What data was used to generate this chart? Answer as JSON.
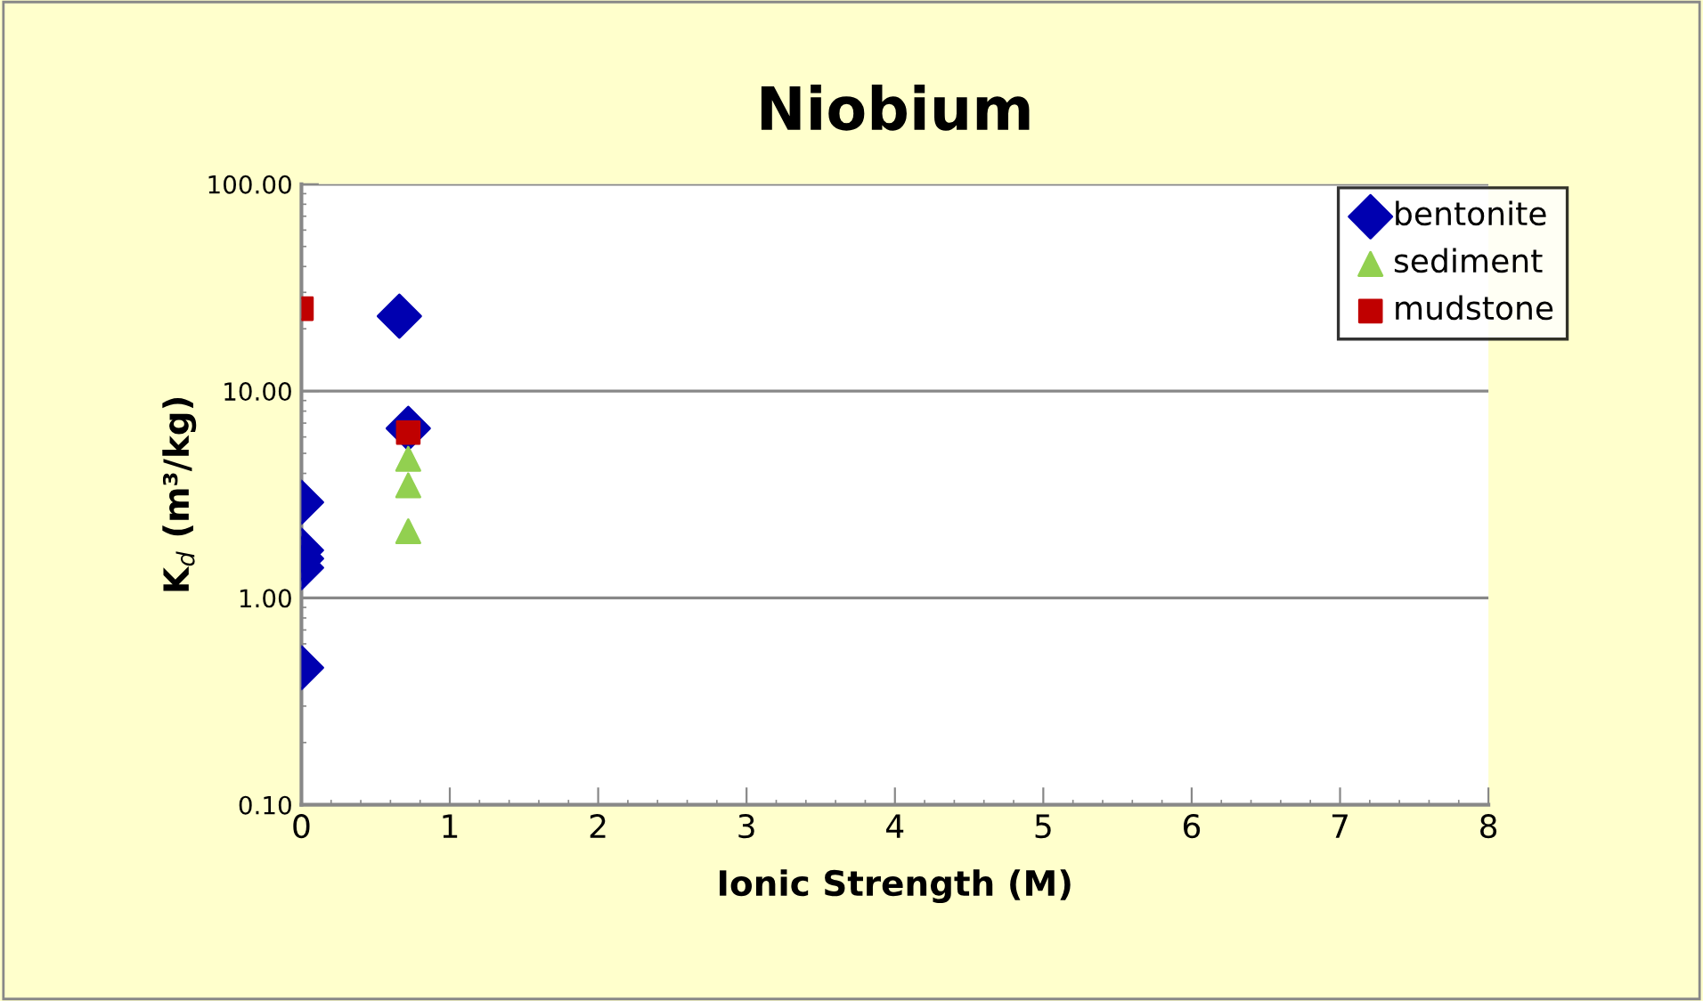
{
  "chart_data": {
    "type": "scatter",
    "title": "Niobium",
    "xlabel": "Ionic Strength (M)",
    "ylabel": "K$_{d}$ (m³/kg)",
    "log": "y",
    "xlim": [
      0,
      8
    ],
    "xticks": [
      0,
      1,
      2,
      3,
      4,
      5,
      6,
      7,
      8
    ],
    "ylim": [
      0.1,
      100
    ],
    "yticks": [
      {
        "value": 0.1,
        "label": "0.10"
      },
      {
        "value": 1,
        "label": "1.00"
      },
      {
        "value": 10,
        "label": "10.00"
      },
      {
        "value": 100,
        "label": "100.00"
      }
    ],
    "grid": "y",
    "legend": "top right",
    "series": [
      {
        "name": "bentonite",
        "color": "#0000b0",
        "marker": "diamond",
        "x": [
          0,
          0,
          0,
          0,
          0,
          0.66,
          0.72
        ],
        "values": [
          2.9,
          1.7,
          1.55,
          1.4,
          0.46,
          23,
          6.6
        ]
      },
      {
        "name": "sediment",
        "color": "#92d050",
        "marker": "triangle",
        "x": [
          0.72,
          0.72,
          0.72
        ],
        "values": [
          4.7,
          3.5,
          2.1
        ]
      },
      {
        "name": "mudstone",
        "color": "#c00000",
        "marker": "square",
        "x": [
          0,
          0.72
        ],
        "values": [
          25,
          6.3
        ]
      }
    ]
  }
}
